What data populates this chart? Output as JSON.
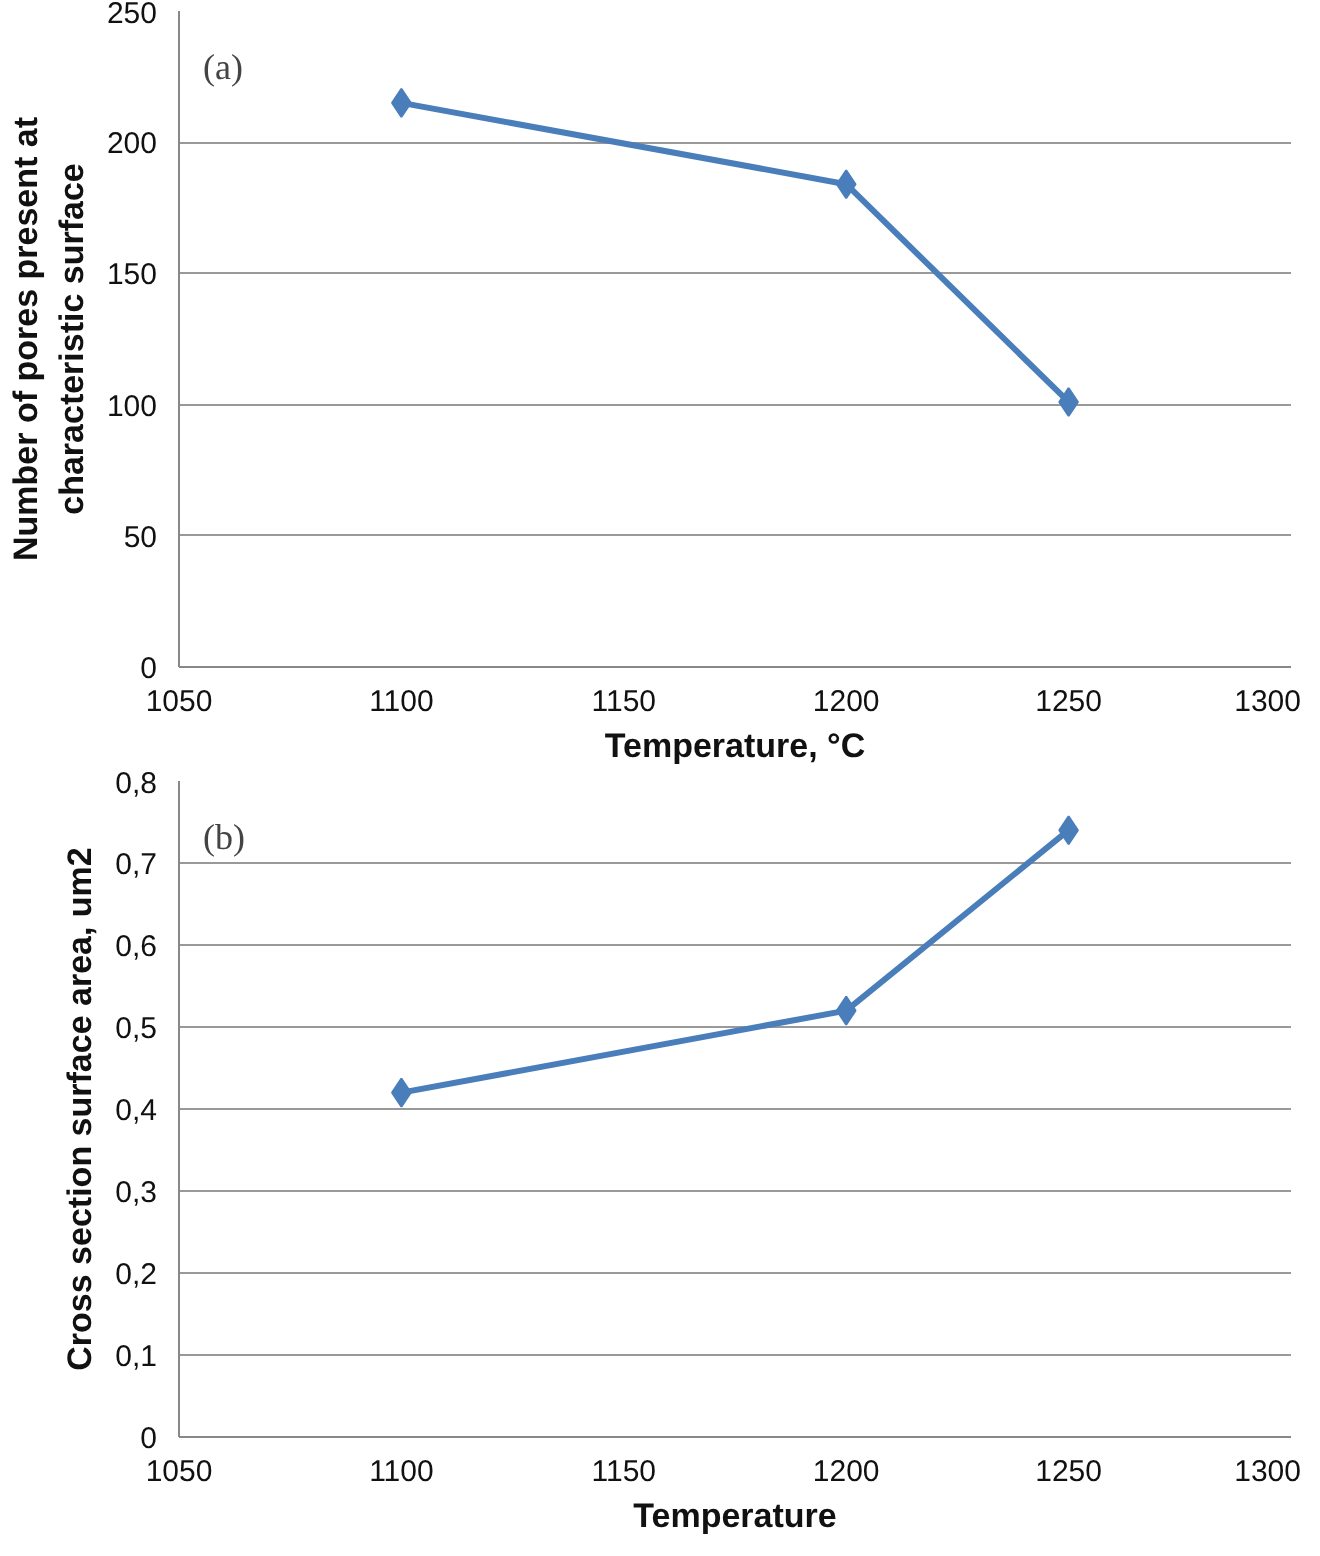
{
  "chart_data": [
    {
      "type": "line",
      "xlabel": "Temperature, °C",
      "ylabel": "Number of pores present at\ncharacteristic surface",
      "annotations": [
        "(a)"
      ],
      "x": [
        1100,
        1200,
        1250
      ],
      "series": [
        {
          "color": "#4a7ebb",
          "values": [
            215,
            184,
            101
          ]
        }
      ],
      "xlim": [
        1050,
        1300
      ],
      "xticks": [
        1050,
        1100,
        1150,
        1200,
        1250,
        1300
      ],
      "ylim": [
        0,
        250
      ],
      "yticks": [
        0,
        50,
        100,
        150,
        200,
        250
      ],
      "grid": "y",
      "marker": "diamond",
      "line_style": "solid"
    },
    {
      "type": "line",
      "xlabel": "Temperature",
      "ylabel": "Cross section surface area, um2",
      "annotations": [
        "(b)"
      ],
      "x": [
        1100,
        1200,
        1250
      ],
      "series": [
        {
          "color": "#4a7ebb",
          "values": [
            0.42,
            0.52,
            0.74
          ]
        }
      ],
      "xlim": [
        1050,
        1300
      ],
      "xticks": [
        1050,
        1100,
        1150,
        1200,
        1250,
        1300
      ],
      "ylim": [
        0,
        0.8
      ],
      "yticks": [
        0,
        {
          "value": 0.1,
          "label": "0,1"
        },
        {
          "value": 0.2,
          "label": "0,2"
        },
        {
          "value": 0.3,
          "label": "0,3"
        },
        {
          "value": 0.4,
          "label": "0,4"
        },
        {
          "value": 0.5,
          "label": "0,5"
        },
        {
          "value": 0.6,
          "label": "0,6"
        },
        {
          "value": 0.7,
          "label": "0,7"
        },
        {
          "value": 0.8,
          "label": "0,8"
        }
      ],
      "grid": "y",
      "marker": "diamond",
      "line_style": "solid"
    }
  ]
}
